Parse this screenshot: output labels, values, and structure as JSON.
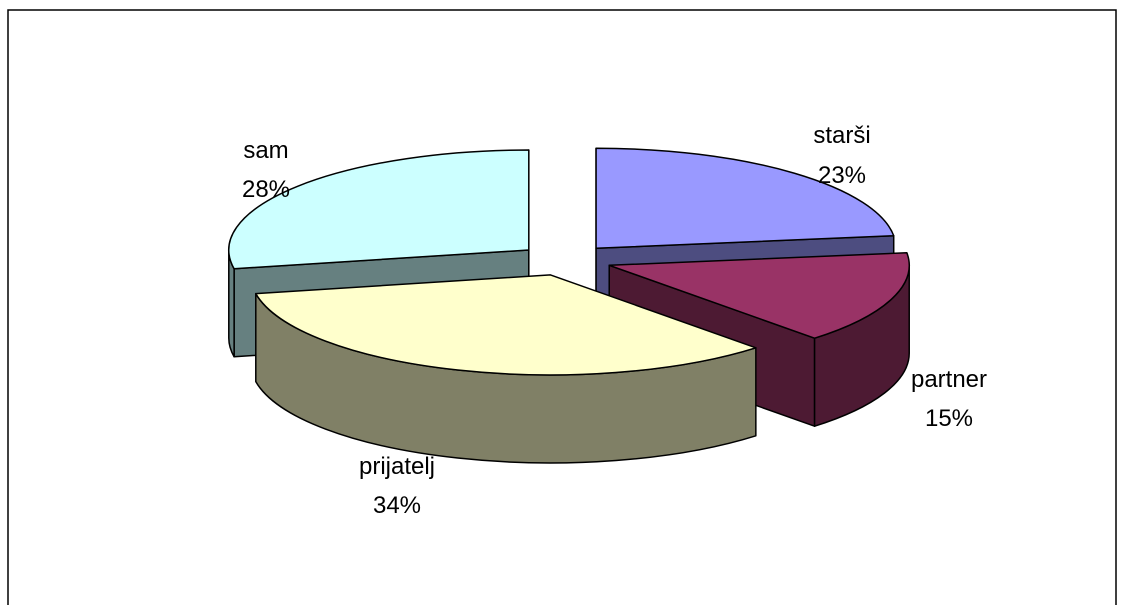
{
  "chart_data": {
    "type": "pie",
    "variant": "3d-exploded",
    "title": "",
    "slices": [
      {
        "label": "starši",
        "value_label": "23%",
        "value": 23,
        "color_top": "#9999FF",
        "color_side": "#4D4D80"
      },
      {
        "label": "partner",
        "value_label": "15%",
        "value": 15,
        "color_top": "#993366",
        "color_side": "#4D1A33"
      },
      {
        "label": "prijatelj",
        "value_label": "34%",
        "value": 34,
        "color_top": "#FFFFCC",
        "color_side": "#808066"
      },
      {
        "label": "sam",
        "value_label": "28%",
        "value": 28,
        "color_top": "#CCFFFF",
        "color_side": "#668080"
      }
    ],
    "legend": "none",
    "border": true
  }
}
